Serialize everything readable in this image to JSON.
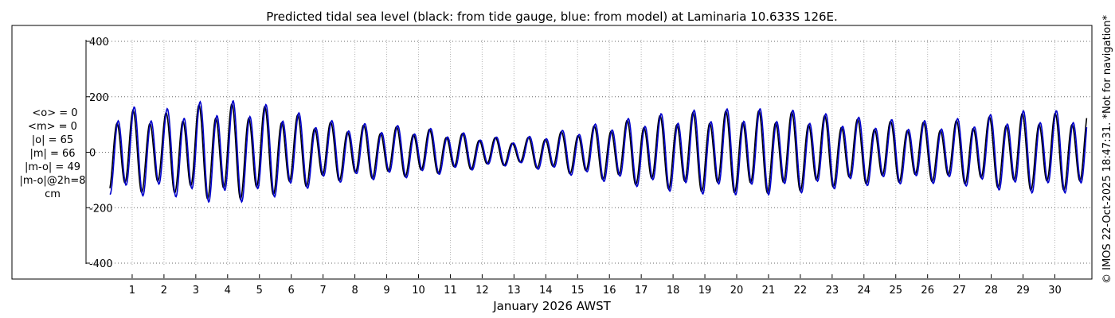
{
  "chart_data": {
    "type": "line",
    "title": "Predicted tidal sea level (black: from tide gauge, blue: from model) at Laminaria 10.633S 126E.",
    "xlabel": "January 2026 AWST",
    "ylabel": "",
    "xlim": [
      0,
      31
    ],
    "ylim": [
      -420,
      420
    ],
    "x_ticks": [
      1,
      2,
      3,
      4,
      5,
      6,
      7,
      8,
      9,
      10,
      11,
      12,
      13,
      14,
      15,
      16,
      17,
      18,
      19,
      20,
      21,
      22,
      23,
      24,
      25,
      26,
      27,
      28,
      29,
      30
    ],
    "y_ticks": [
      -400,
      -200,
      0,
      200,
      400
    ],
    "y_tick_labels": [
      "-400",
      "-200",
      "0",
      "200",
      "400"
    ],
    "grid": true,
    "series": [
      {
        "name": "",
        "color": "#000000",
        "amplitude_daily": [
          120,
          130,
          120,
          145,
          150,
          145,
          120,
          95,
          85,
          80,
          75,
          62,
          50,
          38,
          55,
          72,
          90,
          105,
          118,
          125,
          128,
          128,
          122,
          110,
          100,
          95,
          92,
          98,
          110,
          120,
          120
        ],
        "amplitude_note": "",
        "period_hours": 12.42,
        "phase_hours": 0
      },
      {
        "name": "",
        "color": "#0000cc",
        "amplitude_daily": [
          130,
          140,
          132,
          155,
          160,
          152,
          128,
          100,
          90,
          84,
          78,
          65,
          52,
          40,
          58,
          76,
          95,
          110,
          124,
          132,
          134,
          134,
          128,
          116,
          106,
          100,
          97,
          104,
          116,
          128,
          128
        ],
        "period_hours": 12.42,
        "phase_hours": 0.9
      }
    ],
    "stats": {
      "lines": [
        "<o> = 0",
        "<m> = 0",
        "|o| = 65",
        "|m| = 66",
        "|m-o| = 49",
        "|m-o|@2h=8",
        "cm"
      ]
    },
    "side_note": "© IMOS 22-Oct-2025 18:47:31. *Not for navigation*"
  }
}
